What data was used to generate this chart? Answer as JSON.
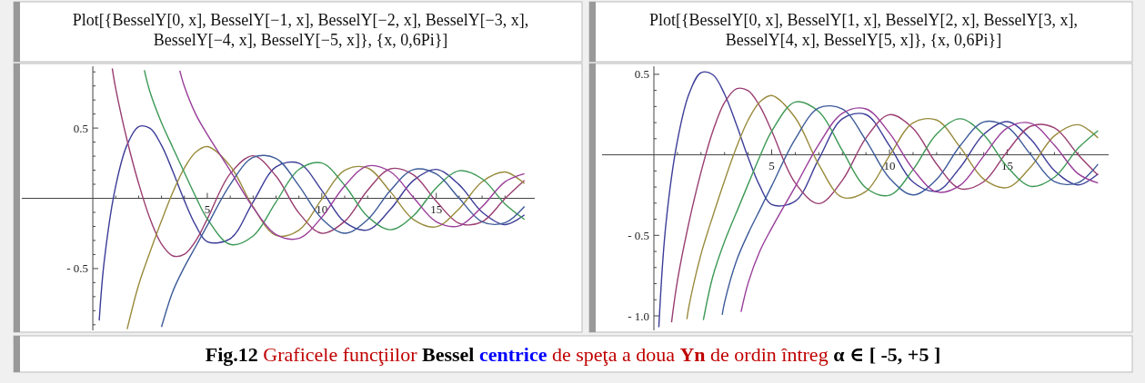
{
  "chart_data": [
    {
      "type": "line",
      "title": "Plot[{BesselY[0, x], BesselY[−1, x], BesselY[−2, x], BesselY[−3, x], BesselY[−4, x], BesselY[−5, x]}, {x, 0,6Pi}]",
      "xlim": [
        -3.1,
        19.3
      ],
      "ylim": [
        -0.94,
        0.94
      ],
      "xticks": [
        {
          "value": 1,
          "label": null
        },
        {
          "value": 2,
          "label": null
        },
        {
          "value": 3,
          "label": null
        },
        {
          "value": 4,
          "label": null
        },
        5,
        {
          "value": 6,
          "label": null
        },
        {
          "value": 7,
          "label": null
        },
        {
          "value": 8,
          "label": null
        },
        {
          "value": 9,
          "label": null
        },
        10,
        {
          "value": 11,
          "label": null
        },
        {
          "value": 12,
          "label": null
        },
        {
          "value": 13,
          "label": null
        },
        {
          "value": 14,
          "label": null
        },
        15,
        {
          "value": 16,
          "label": null
        },
        {
          "value": 17,
          "label": null
        },
        {
          "value": 18,
          "label": null
        }
      ],
      "yticks": [
        {
          "value": -0.9,
          "label": null
        },
        {
          "value": -0.8,
          "label": null
        },
        {
          "value": -0.7,
          "label": null
        },
        {
          "value": -0.6,
          "label": null
        },
        {
          "value": -0.5,
          "label": "- 0.5"
        },
        {
          "value": -0.4,
          "label": null
        },
        {
          "value": -0.3,
          "label": null
        },
        {
          "value": -0.2,
          "label": null
        },
        {
          "value": -0.1,
          "label": null
        },
        {
          "value": 0.1,
          "label": null
        },
        {
          "value": 0.2,
          "label": null
        },
        {
          "value": 0.3,
          "label": null
        },
        {
          "value": 0.4,
          "label": null
        },
        0.5,
        {
          "value": 0.6,
          "label": null
        },
        {
          "value": 0.7,
          "label": null
        },
        {
          "value": 0.8,
          "label": null
        },
        {
          "value": 0.9,
          "label": null
        }
      ],
      "series": [
        {
          "color": "#3d3d99",
          "x": [
            0.28,
            0.5,
            1,
            1.5,
            2,
            2.5,
            3,
            3.5,
            4,
            4.5,
            5,
            6,
            7,
            8,
            9,
            10,
            11,
            12,
            13,
            14,
            15,
            16,
            17,
            18,
            18.85
          ],
          "values": [
            -0.87,
            -0.445,
            0.088,
            0.382,
            0.51,
            0.498,
            0.377,
            0.189,
            -0.017,
            -0.195,
            -0.309,
            -0.288,
            -0.026,
            0.224,
            0.25,
            0.056,
            -0.169,
            -0.225,
            -0.078,
            0.127,
            0.206,
            0.096,
            -0.098,
            -0.187,
            -0.118
          ]
        },
        {
          "color": "#993d71",
          "x": [
            0.85,
            1,
            1.5,
            2,
            2.5,
            3,
            3.5,
            4,
            4.5,
            5,
            6,
            7,
            8,
            9,
            10,
            11,
            12,
            13,
            14,
            15,
            16,
            17,
            18,
            18.85
          ],
          "values": [
            0.925,
            0.781,
            0.412,
            0.107,
            -0.146,
            -0.325,
            -0.41,
            -0.398,
            -0.301,
            -0.148,
            0.175,
            0.303,
            0.158,
            -0.104,
            -0.249,
            -0.164,
            0.057,
            0.21,
            0.167,
            -0.021,
            -0.178,
            -0.167,
            -0.002,
            0.127
          ]
        },
        {
          "color": "#998b3d",
          "x": [
            1.5,
            2,
            2.5,
            3,
            3.5,
            4,
            4.5,
            5,
            6,
            7,
            8,
            9,
            10,
            11,
            12,
            13,
            14,
            15,
            16,
            17,
            18,
            18.85
          ],
          "values": [
            -0.931,
            -0.617,
            -0.381,
            -0.16,
            0.045,
            0.216,
            0.329,
            0.368,
            0.23,
            -0.061,
            -0.264,
            -0.227,
            -0.006,
            0.199,
            0.216,
            0.046,
            -0.151,
            -0.203,
            -0.074,
            0.118,
            0.187,
            0.105
          ]
        },
        {
          "color": "#3d9956",
          "x": [
            2.25,
            2.5,
            3,
            3.5,
            4,
            4.5,
            5,
            6,
            7,
            8,
            9,
            10,
            11,
            12,
            13,
            14,
            15,
            16,
            17,
            18,
            18.85
          ],
          "values": [
            0.912,
            0.756,
            0.538,
            0.359,
            0.182,
            0.009,
            -0.146,
            -0.328,
            -0.268,
            -0.026,
            0.205,
            0.251,
            0.092,
            -0.129,
            -0.224,
            -0.124,
            0.075,
            0.196,
            0.139,
            -0.04,
            -0.15
          ]
        },
        {
          "color": "#3d5b99",
          "x": [
            3,
            3.5,
            4,
            4.5,
            5,
            6,
            7,
            8,
            9,
            10,
            11,
            12,
            13,
            14,
            15,
            16,
            17,
            18,
            18.85
          ],
          "values": [
            -0.916,
            -0.66,
            -0.489,
            -0.341,
            -0.193,
            0.098,
            0.291,
            0.284,
            0.09,
            -0.145,
            -0.249,
            -0.152,
            0.057,
            0.204,
            0.173,
            0.0,
            -0.167,
            -0.174,
            -0.058
          ]
        },
        {
          "color": "#993d99",
          "x": [
            3.8,
            4,
            4.5,
            5,
            6,
            7,
            8,
            9,
            10,
            11,
            12,
            13,
            14,
            15,
            16,
            17,
            18,
            18.85
          ],
          "values": [
            0.909,
            0.796,
            0.597,
            0.455,
            0.197,
            -0.065,
            -0.258,
            -0.285,
            -0.135,
            0.089,
            0.23,
            0.189,
            0.007,
            -0.167,
            -0.196,
            -0.06,
            0.117,
            0.175
          ]
        }
      ],
      "annotations": [
        "Fig.12",
        "Graficele funcţiilor",
        "Bessel",
        "centrice",
        "de speţa a doua",
        "Yn",
        "de ordin întreg",
        "α ∈ [ -5, +5 ]"
      ]
    },
    {
      "type": "line",
      "title": "Plot[{BesselY[0, x], BesselY[1, x], BesselY[2, x], BesselY[3, x], BesselY[4, x], BesselY[5, x]}, {x, 0,6Pi}]",
      "xlim": [
        -2.2,
        19.3
      ],
      "ylim": [
        -1.09,
        0.55
      ],
      "xticks": [
        {
          "value": 1,
          "label": null
        },
        {
          "value": 2,
          "label": null
        },
        {
          "value": 3,
          "label": null
        },
        {
          "value": 4,
          "label": null
        },
        5,
        {
          "value": 6,
          "label": null
        },
        {
          "value": 7,
          "label": null
        },
        {
          "value": 8,
          "label": null
        },
        {
          "value": 9,
          "label": null
        },
        10,
        {
          "value": 11,
          "label": null
        },
        {
          "value": 12,
          "label": null
        },
        {
          "value": 13,
          "label": null
        },
        {
          "value": 14,
          "label": null
        },
        15,
        {
          "value": 16,
          "label": null
        },
        {
          "value": 17,
          "label": null
        },
        {
          "value": 18,
          "label": null
        }
      ],
      "yticks": [
        {
          "value": -1.0,
          "label": "- 1.0"
        },
        {
          "value": -0.9,
          "label": null
        },
        {
          "value": -0.8,
          "label": null
        },
        {
          "value": -0.7,
          "label": null
        },
        {
          "value": -0.6,
          "label": null
        },
        {
          "value": -0.5,
          "label": "- 0.5"
        },
        {
          "value": -0.4,
          "label": null
        },
        {
          "value": -0.3,
          "label": null
        },
        {
          "value": -0.2,
          "label": null
        },
        {
          "value": -0.1,
          "label": null
        },
        {
          "value": 0.1,
          "label": null
        },
        {
          "value": 0.2,
          "label": null
        },
        {
          "value": 0.3,
          "label": null
        },
        {
          "value": 0.4,
          "label": null
        },
        0.5
      ],
      "series": [
        {
          "color": "#3d3d99",
          "x": [
            0.21,
            0.5,
            1,
            1.5,
            2,
            2.5,
            3,
            3.5,
            4,
            4.5,
            5,
            6,
            7,
            8,
            9,
            10,
            11,
            12,
            13,
            14,
            15,
            16,
            17,
            18,
            18.85
          ],
          "values": [
            -1.07,
            -0.445,
            0.088,
            0.382,
            0.51,
            0.498,
            0.377,
            0.189,
            -0.017,
            -0.195,
            -0.309,
            -0.288,
            -0.026,
            0.224,
            0.25,
            0.056,
            -0.169,
            -0.225,
            -0.078,
            0.127,
            0.206,
            0.096,
            -0.098,
            -0.187,
            -0.118
          ]
        },
        {
          "color": "#993d71",
          "x": [
            0.75,
            1,
            1.5,
            2,
            2.5,
            3,
            3.5,
            4,
            4.5,
            5,
            6,
            7,
            8,
            9,
            10,
            11,
            12,
            13,
            14,
            15,
            16,
            17,
            18,
            18.85
          ],
          "values": [
            -1.04,
            -0.781,
            -0.412,
            -0.107,
            0.146,
            0.325,
            0.41,
            0.398,
            0.301,
            0.148,
            -0.175,
            -0.303,
            -0.158,
            0.104,
            0.249,
            0.164,
            -0.057,
            -0.21,
            -0.167,
            0.021,
            0.178,
            0.167,
            0.002,
            -0.127
          ]
        },
        {
          "color": "#998b3d",
          "x": [
            1.4,
            1.5,
            2,
            2.5,
            3,
            3.5,
            4,
            4.5,
            5,
            6,
            7,
            8,
            9,
            10,
            11,
            12,
            13,
            14,
            15,
            16,
            17,
            18,
            18.85
          ],
          "values": [
            -1.02,
            -0.931,
            -0.617,
            -0.381,
            -0.16,
            0.045,
            0.216,
            0.329,
            0.368,
            0.23,
            -0.061,
            -0.264,
            -0.227,
            -0.006,
            0.199,
            0.216,
            0.046,
            -0.151,
            -0.203,
            -0.074,
            0.118,
            0.187,
            0.105
          ]
        },
        {
          "color": "#3d9956",
          "x": [
            2.1,
            2.5,
            3,
            3.5,
            4,
            4.5,
            5,
            6,
            7,
            8,
            9,
            10,
            11,
            12,
            13,
            14,
            15,
            16,
            17,
            18,
            18.85
          ],
          "values": [
            -1.026,
            -0.756,
            -0.538,
            -0.359,
            -0.182,
            -0.009,
            0.146,
            0.328,
            0.268,
            0.026,
            -0.205,
            -0.251,
            -0.092,
            0.129,
            0.224,
            0.124,
            -0.075,
            -0.196,
            -0.139,
            0.04,
            0.15
          ]
        },
        {
          "color": "#3d5b99",
          "x": [
            2.9,
            3,
            3.5,
            4,
            4.5,
            5,
            6,
            7,
            8,
            9,
            10,
            11,
            12,
            13,
            14,
            15,
            16,
            17,
            18,
            18.85
          ],
          "values": [
            -0.994,
            -0.916,
            -0.66,
            -0.489,
            -0.341,
            -0.193,
            0.098,
            0.291,
            0.284,
            0.09,
            -0.145,
            -0.249,
            -0.152,
            0.057,
            0.204,
            0.173,
            0.0,
            -0.167,
            -0.174,
            -0.058
          ]
        },
        {
          "color": "#993d99",
          "x": [
            3.7,
            4,
            4.5,
            5,
            6,
            7,
            8,
            9,
            10,
            11,
            12,
            13,
            14,
            15,
            16,
            17,
            18,
            18.85
          ],
          "values": [
            -0.975,
            -0.796,
            -0.597,
            -0.455,
            -0.197,
            0.065,
            0.258,
            0.285,
            0.135,
            -0.089,
            -0.23,
            -0.189,
            -0.007,
            0.167,
            0.196,
            0.06,
            -0.117,
            -0.175
          ]
        }
      ]
    }
  ]
}
